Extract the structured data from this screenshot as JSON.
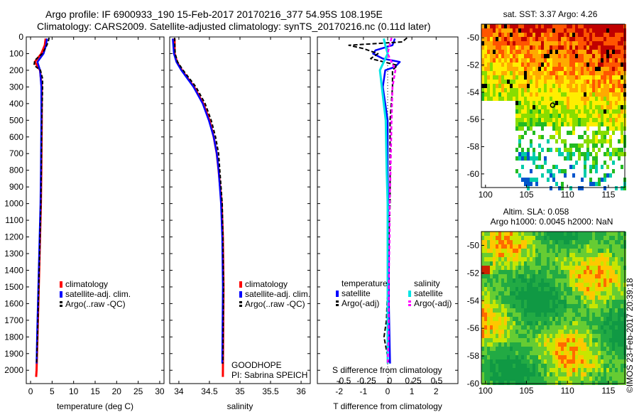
{
  "header": {
    "line1": "Argo profile: IF 6900933_190 15-Feb-2017 20170216_377 54.95S 108.195E",
    "line2": "Climatology: CARS2009. Satellite-adjusted climatology: synTS_20170216.nc (0.11d later)"
  },
  "credit": "©IMOS 23-Feb-2017 20:39:18",
  "colors": {
    "clim": "#ff0000",
    "sat": "#0000ff",
    "argo": "#000000",
    "sat_s": "#00e5e5",
    "argo_s": "#ff00ff"
  },
  "chart_data": [
    {
      "type": "line",
      "id": "temperature",
      "xlabel": "temperature (deg C)",
      "ylabel": "",
      "xlim": [
        -1,
        31
      ],
      "ylim": [
        2080,
        0
      ],
      "xticks": [
        0,
        5,
        10,
        15,
        20,
        25,
        30
      ],
      "yticks": [
        0,
        100,
        200,
        300,
        400,
        500,
        600,
        700,
        800,
        900,
        1000,
        1100,
        1200,
        1300,
        1400,
        1500,
        1600,
        1700,
        1800,
        1900,
        2000
      ],
      "legend": [
        "climatology",
        "satellite-adj. clim.",
        "Argo(..raw -QC)"
      ],
      "legend_position": "center-right",
      "series": [
        {
          "name": "climatology",
          "depth": [
            10,
            50,
            100,
            150,
            200,
            300,
            500,
            800,
            1000,
            1200,
            1500,
            1800,
            2000,
            2040
          ],
          "values": [
            3.5,
            3.3,
            2.5,
            1.0,
            2.2,
            2.6,
            2.6,
            2.5,
            2.4,
            2.2,
            1.9,
            1.6,
            1.4,
            1.3
          ]
        },
        {
          "name": "satellite-adj. clim.",
          "depth": [
            10,
            50,
            100,
            150,
            200,
            300,
            500,
            800,
            1000,
            1200,
            1500,
            1800,
            1960
          ],
          "values": [
            3.8,
            3.6,
            3.0,
            1.6,
            2.2,
            2.5,
            2.5,
            2.4,
            2.3,
            2.1,
            1.8,
            1.5,
            1.4
          ]
        },
        {
          "name": "Argo(..raw -QC)",
          "depth": [
            5,
            30,
            60,
            100,
            140,
            170,
            200,
            250,
            300,
            500,
            800,
            1000,
            1200,
            1500,
            1800,
            1960
          ],
          "values": [
            4.3,
            4.1,
            3.6,
            2.7,
            1.0,
            0.8,
            2.3,
            2.8,
            2.8,
            2.6,
            2.5,
            2.4,
            2.2,
            1.9,
            1.6,
            1.4
          ]
        }
      ]
    },
    {
      "type": "line",
      "id": "salinity",
      "xlabel": "salinity",
      "ylabel": "",
      "xlim": [
        33.85,
        36.15
      ],
      "ylim": [
        2080,
        0
      ],
      "xticks": [
        34,
        34.5,
        35,
        35.5,
        36
      ],
      "legend": [
        "climatology",
        "satellite-adj. clim.",
        "Argo(..raw -QC)"
      ],
      "legend_position": "center-right",
      "annotation": [
        "GOODHOPE",
        "PI: Sabrina SPEICH"
      ],
      "series": [
        {
          "name": "climatology",
          "depth": [
            10,
            100,
            150,
            200,
            300,
            400,
            500,
            600,
            700,
            800,
            1000,
            1200,
            1500,
            2040
          ],
          "values": [
            33.93,
            33.93,
            33.97,
            34.05,
            34.25,
            34.4,
            34.5,
            34.57,
            34.62,
            34.65,
            34.7,
            34.72,
            34.73,
            34.72
          ]
        },
        {
          "name": "satellite-adj. clim.",
          "depth": [
            10,
            100,
            150,
            200,
            300,
            400,
            500,
            600,
            700,
            800,
            1000,
            1200,
            1500,
            1960
          ],
          "values": [
            33.9,
            33.92,
            33.96,
            34.04,
            34.24,
            34.39,
            34.49,
            34.57,
            34.62,
            34.65,
            34.69,
            34.71,
            34.72,
            34.71
          ]
        },
        {
          "name": "Argo(..raw -QC)",
          "depth": [
            5,
            100,
            150,
            200,
            300,
            400,
            500,
            600,
            700,
            800,
            1000,
            1200,
            1500,
            1960
          ],
          "values": [
            33.93,
            33.94,
            33.98,
            34.07,
            34.28,
            34.43,
            34.53,
            34.6,
            34.65,
            34.67,
            34.71,
            34.72,
            34.73,
            34.72
          ]
        }
      ]
    },
    {
      "type": "line",
      "id": "difference",
      "xlabel": "T difference from climatology",
      "top_label": "S difference from climatology",
      "xlim": [
        -2.9,
        2.9
      ],
      "ylim": [
        2080,
        0
      ],
      "xticks": [
        -2,
        -1,
        0,
        1,
        2
      ],
      "top_ticks": [
        "-0.5",
        "-0.25",
        "0",
        "0.25",
        "0.5"
      ],
      "legend_titles": [
        "temperature",
        "salinity"
      ],
      "legend": [
        "satellite",
        "Argo(-adj)",
        "satellite",
        "Argo(-adj)"
      ],
      "legend_position": "center",
      "series": [
        {
          "name": "temperature satellite",
          "depth": [
            10,
            50,
            80,
            100,
            130,
            150,
            180,
            200,
            300,
            500,
            800,
            1200,
            1600,
            1960
          ],
          "values": [
            0.3,
            0.2,
            -0.5,
            -0.6,
            -0.2,
            0.5,
            0.3,
            -0.1,
            -0.2,
            0.0,
            0.0,
            0.05,
            0.05,
            0.1
          ]
        },
        {
          "name": "temperature Argo(-adj)",
          "depth": [
            5,
            30,
            50,
            70,
            100,
            130,
            170,
            200,
            250,
            300,
            500,
            800,
            1000,
            1200,
            1500,
            1700,
            1800,
            1960
          ],
          "values": [
            0.8,
            0.6,
            -1.6,
            -1.0,
            -0.4,
            -0.7,
            0.4,
            0.2,
            0.2,
            0.2,
            0.1,
            0.1,
            0.1,
            0.05,
            0.0,
            -0.05,
            -0.15,
            0.05
          ]
        },
        {
          "name": "salinity satellite",
          "depth": [
            10,
            60,
            100,
            150,
            200,
            300,
            500,
            800,
            1000,
            1200,
            1500,
            1800,
            1960
          ],
          "values": [
            -0.04,
            -0.02,
            0.0,
            -0.04,
            -0.08,
            -0.06,
            -0.02,
            -0.01,
            0.0,
            0.0,
            0.0,
            0.0,
            0.0
          ]
        },
        {
          "name": "salinity Argo(-adj)",
          "depth": [
            5,
            50,
            100,
            150,
            200,
            300,
            500,
            800,
            1000,
            1200,
            1500,
            1800,
            1960
          ],
          "values": [
            0.04,
            0.02,
            0.0,
            0.04,
            0.08,
            0.05,
            0.04,
            0.03,
            0.02,
            0.02,
            0.01,
            0.01,
            0.0
          ]
        }
      ]
    },
    {
      "type": "heatmap",
      "id": "sst-map",
      "title": "sat. SST: 3.37  Argo: 4.26",
      "xlim": [
        99.5,
        117
      ],
      "ylim": [
        -61,
        -49
      ],
      "xticks": [
        100,
        105,
        110,
        115
      ],
      "yticks": [
        -50,
        -52,
        -54,
        -56,
        -58,
        -60
      ],
      "marker": {
        "lon": 108.195,
        "lat": -54.95
      }
    },
    {
      "type": "heatmap",
      "id": "sla-map",
      "title": "Altim. SLA: 0.058",
      "subtitle": "Argo h1000: 0.0045 h2000: NaN",
      "xlim": [
        99.5,
        117
      ],
      "ylim": [
        -60,
        -49
      ],
      "xticks": [
        100,
        105,
        110,
        115
      ],
      "yticks": [
        -50,
        -52,
        -54,
        -56,
        -58,
        -60
      ]
    }
  ]
}
